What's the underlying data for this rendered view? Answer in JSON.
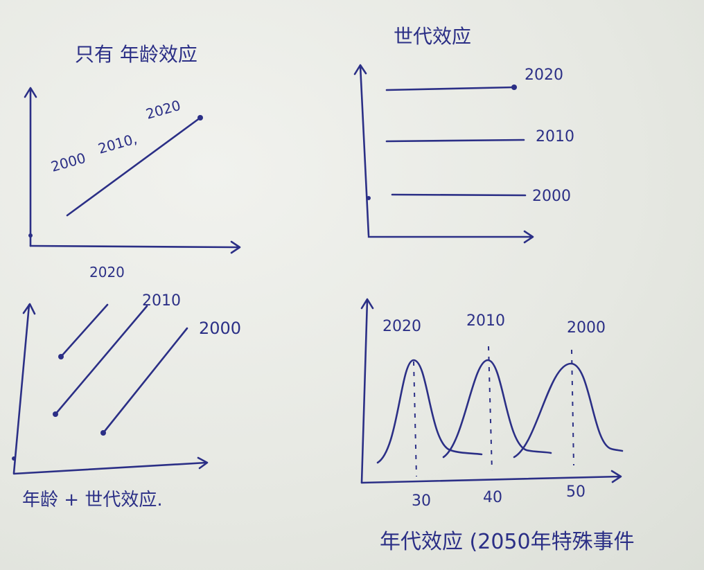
{
  "colors": {
    "ink": "#2b2f86",
    "paper": "#eceee9"
  },
  "chart_data": [
    {
      "type": "line",
      "title": "只有 年龄效应",
      "xlabel": "",
      "ylabel": "",
      "series": [
        {
          "name": "2000",
          "x": [
            0.1,
            0.9
          ],
          "y": [
            0.2,
            0.8
          ]
        }
      ],
      "annotations": [
        "2000",
        "2010,",
        "2020"
      ]
    },
    {
      "type": "line",
      "title": "世代效应",
      "xlabel": "",
      "ylabel": "",
      "series": [
        {
          "name": "2020",
          "x": [
            0.1,
            0.9
          ],
          "y": [
            0.85,
            0.85
          ]
        },
        {
          "name": "2010",
          "x": [
            0.1,
            0.9
          ],
          "y": [
            0.55,
            0.55
          ]
        },
        {
          "name": "2000",
          "x": [
            0.12,
            0.9
          ],
          "y": [
            0.25,
            0.25
          ]
        }
      ]
    },
    {
      "type": "line",
      "title": "年龄 + 世代效应.",
      "xlabel": "",
      "ylabel": "",
      "series": [
        {
          "name": "2020",
          "x": [
            0.2,
            0.45
          ],
          "y": [
            0.55,
            0.85
          ]
        },
        {
          "name": "2010",
          "x": [
            0.2,
            0.7
          ],
          "y": [
            0.3,
            0.85
          ]
        },
        {
          "name": "2000",
          "x": [
            0.45,
            0.9
          ],
          "y": [
            0.15,
            0.65
          ]
        }
      ]
    },
    {
      "type": "line",
      "title": "年代效应 (2050年特殊事件",
      "xlabel": "",
      "ylabel": "",
      "tick_labels": [
        "30",
        "40",
        "50"
      ],
      "series": [
        {
          "name": "2020",
          "peak_x": 30
        },
        {
          "name": "2010",
          "peak_x": 40
        },
        {
          "name": "2000",
          "peak_x": 50
        }
      ]
    }
  ]
}
